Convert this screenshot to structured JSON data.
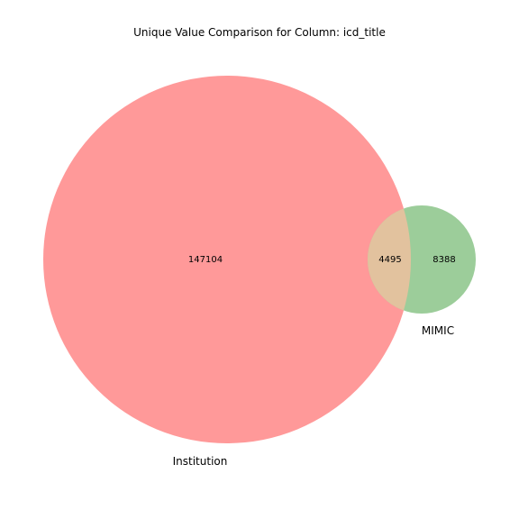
{
  "title": "Unique Value Comparison for Column: icd_title",
  "sets": [
    {
      "name": "Institution",
      "only_count": "147104",
      "color": "#ff9999"
    },
    {
      "name": "MIMIC",
      "only_count": "8388",
      "color": "#9ccd9a"
    }
  ],
  "intersection": {
    "count": "4495",
    "color": "#e2c29e"
  }
}
